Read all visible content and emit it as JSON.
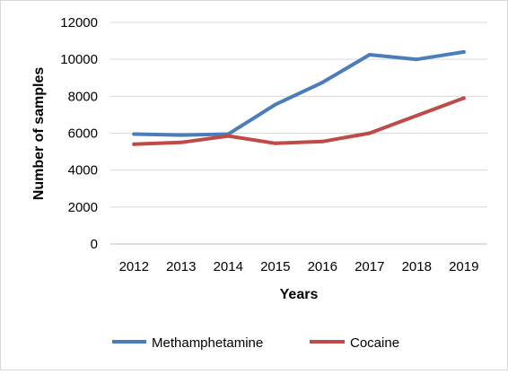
{
  "chart_data": {
    "type": "line",
    "title": "",
    "xlabel": "Years",
    "ylabel": "Number of samples",
    "categories": [
      "2012",
      "2013",
      "2014",
      "2015",
      "2016",
      "2017",
      "2018",
      "2019"
    ],
    "yticks": [
      "0",
      "2000",
      "4000",
      "6000",
      "8000",
      "10000",
      "12000"
    ],
    "ylim": [
      0,
      12000
    ],
    "grid": true,
    "legend_position": "bottom",
    "series": [
      {
        "name": "Methamphetamine",
        "color": "#4a7ebb",
        "values": [
          5950,
          5900,
          5950,
          7550,
          8750,
          10250,
          10000,
          10400
        ]
      },
      {
        "name": "Cocaine",
        "color": "#be4b48",
        "values": [
          5400,
          5500,
          5850,
          5450,
          5550,
          6000,
          6950,
          7900
        ]
      }
    ]
  }
}
